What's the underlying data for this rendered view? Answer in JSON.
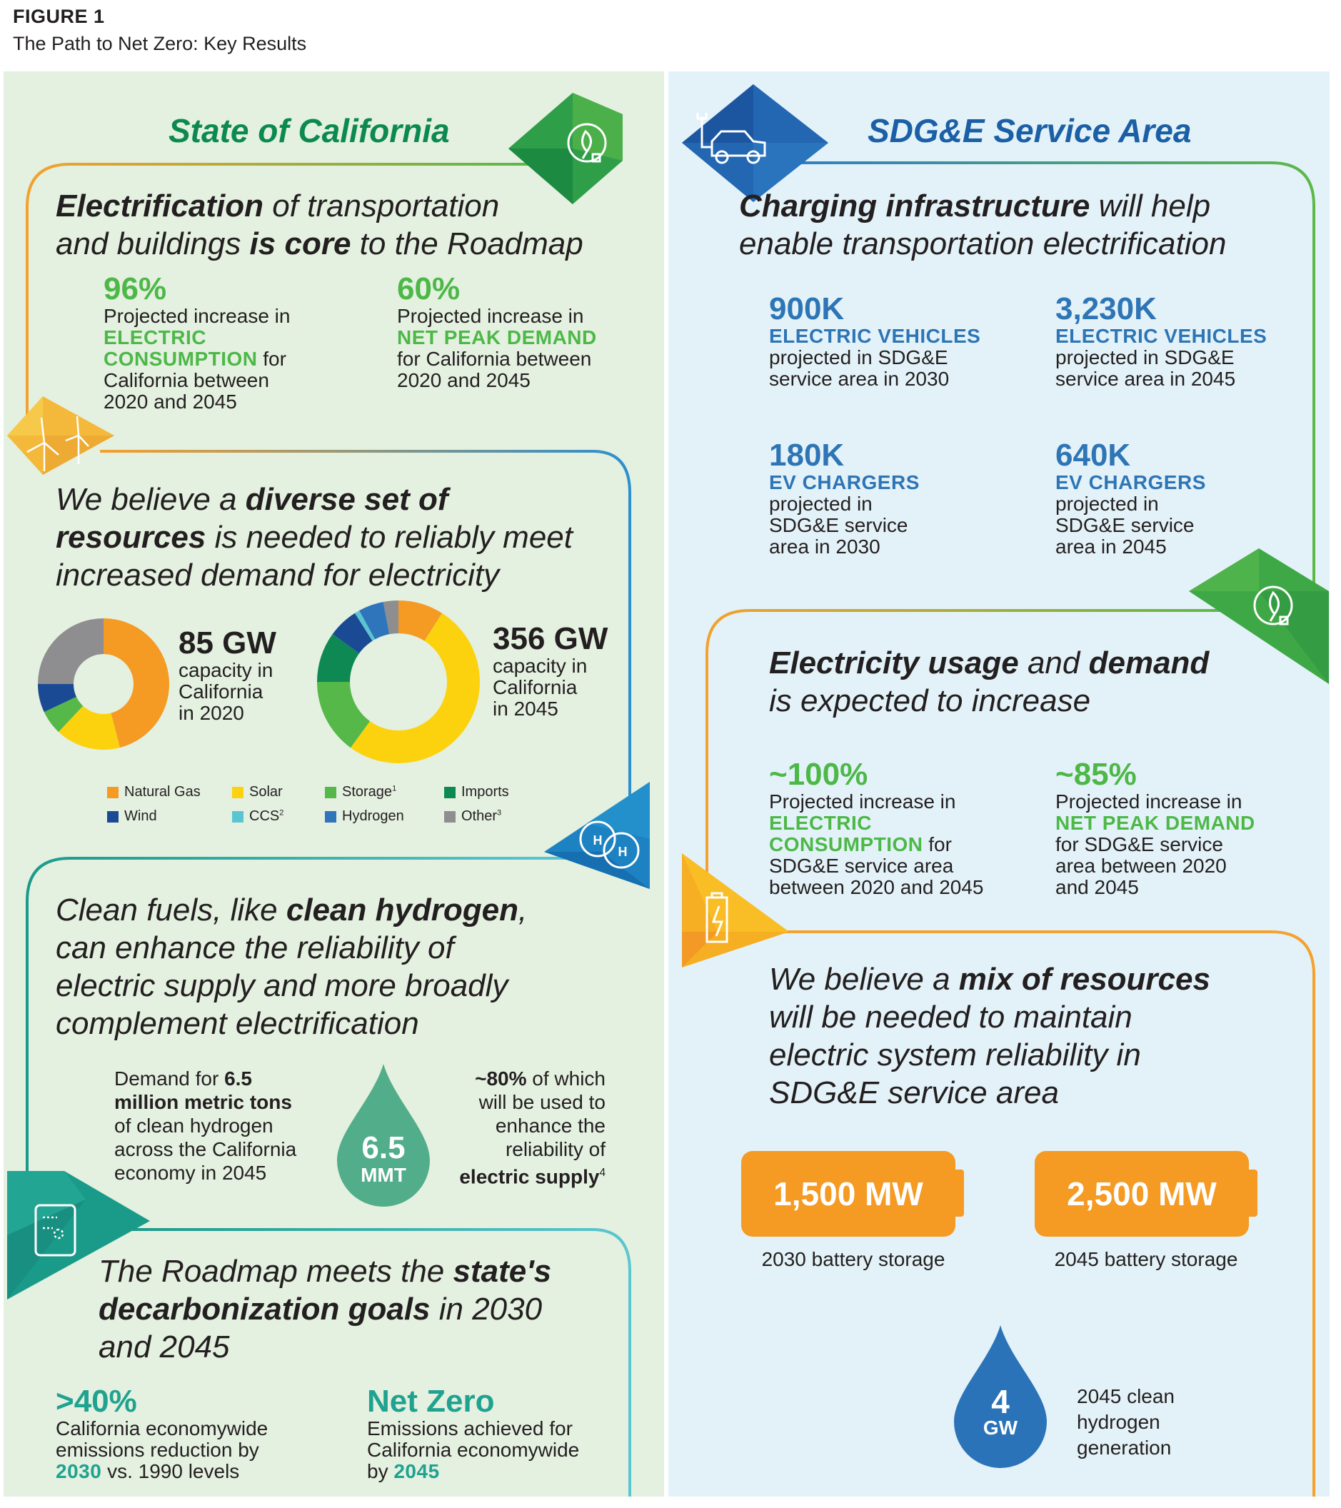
{
  "figure": {
    "label": "FIGURE 1",
    "subtitle": "The Path to Net Zero: Key Results"
  },
  "colors": {
    "left_bg": "#e4f0e0",
    "right_bg": "#e3f2f8",
    "green_title": "#0c8a4e",
    "blue_title": "#1b5fa6",
    "stat_green": "#4db848",
    "stat_blue": "#2e75b6",
    "stat_teal": "#1fa28f",
    "orange": "#f59a23",
    "hydrogen_drop_green": "#52ad8a",
    "hydrogen_drop_blue": "#2b73b8"
  },
  "left": {
    "title": "State of California",
    "section1": {
      "headline": {
        "b1": "Electrification",
        "t1": " of transportation",
        "t2": "and buildings ",
        "b2": "is core",
        "t3": " to the Roadmap"
      },
      "stats": [
        {
          "value": "96%",
          "pre": "Projected increase in",
          "kw1": "ELECTRIC",
          "kw2": "CONSUMPTION",
          "post1": " for",
          "post2": "California between",
          "post3": "2020 and 2045"
        },
        {
          "value": "60%",
          "pre": "Projected increase in",
          "kw1": "NET PEAK DEMAND",
          "post1": "for California between",
          "post2": "2020 and 2045"
        }
      ]
    },
    "section2": {
      "headline": {
        "t1": "We believe a ",
        "b1": "diverse set of",
        "b2": "resources",
        "t2": " is needed to reliably meet",
        "t3": "increased demand for electricity"
      },
      "donut2020": {
        "value": "85 GW",
        "l1": "capacity in",
        "l2": "California",
        "l3": "in 2020"
      },
      "donut2045": {
        "value": "356 GW",
        "l1": "capacity in",
        "l2": "California",
        "l3": "in 2045"
      },
      "legend": [
        {
          "label": "Natural Gas",
          "sup": "",
          "color": "#f59a23"
        },
        {
          "label": "Solar",
          "sup": "",
          "color": "#fcd20f"
        },
        {
          "label": "Storage",
          "sup": "1",
          "color": "#55b848"
        },
        {
          "label": "Imports",
          "sup": "",
          "color": "#0e8953"
        },
        {
          "label": "Wind",
          "sup": "",
          "color": "#1a4a94"
        },
        {
          "label": "CCS",
          "sup": "2",
          "color": "#5bc4d1"
        },
        {
          "label": "Hydrogen",
          "sup": "",
          "color": "#2e75bb"
        },
        {
          "label": "Other",
          "sup": "3",
          "color": "#8e8d90"
        }
      ]
    },
    "section3": {
      "headline": {
        "t1": "Clean fuels, like ",
        "b1": "clean hydrogen",
        "t1b": ",",
        "t2": "can enhance the reliability of",
        "t3": "electric supply and more broadly",
        "t4": "complement electrification"
      },
      "left_text": {
        "t1": "Demand for ",
        "b1": "6.5",
        "b2": "million metric tons",
        "t2": "of clean hydrogen",
        "t3": "across the California",
        "t4": "economy in 2045"
      },
      "drop": {
        "value": "6.5",
        "unit": "MMT"
      },
      "right_text": {
        "b1": "~80%",
        "t1": " of which",
        "t2": "will be used to",
        "t3": "enhance the",
        "t4": "reliability of",
        "b2": "electric supply",
        "sup": "4"
      }
    },
    "section4": {
      "headline": {
        "t1": "The Roadmap meets the ",
        "b1": "state's",
        "b2": "decarbonization goals",
        "t2": " in 2030",
        "t3": "and 2045"
      },
      "stats": [
        {
          "value": ">40%",
          "l1": "California economywide",
          "l2": "emissions reduction by",
          "kw": "2030",
          "l3": " vs. 1990 levels"
        },
        {
          "value": "Net Zero",
          "l1": "Emissions achieved for",
          "l2": "California economywide",
          "l3": "by ",
          "kw": "2045"
        }
      ]
    }
  },
  "right": {
    "title": "SDG&E Service Area",
    "section1": {
      "headline": {
        "b1": "Charging infrastructure",
        "t1": " will help",
        "t2": "enable transportation electrification"
      },
      "stats": [
        {
          "value": "900K",
          "kw": "ELECTRIC VEHICLES",
          "l1": "projected in SDG&E",
          "l2": "service area in 2030"
        },
        {
          "value": "3,230K",
          "kw": "ELECTRIC VEHICLES",
          "l1": "projected in SDG&E",
          "l2": "service area in 2045"
        },
        {
          "value": "180K",
          "kw": "EV CHARGERS",
          "l1": "projected in",
          "l2": "SDG&E service",
          "l3": "area in 2030"
        },
        {
          "value": "640K",
          "kw": "EV CHARGERS",
          "l1": "projected in",
          "l2": "SDG&E service",
          "l3": "area in 2045"
        }
      ]
    },
    "section2": {
      "headline": {
        "b1": "Electricity usage",
        "t1": " and ",
        "b2": "demand",
        "t2": "is expected to increase"
      },
      "stats": [
        {
          "value": "~100%",
          "pre": "Projected increase in",
          "kw1": "ELECTRIC",
          "kw2": "CONSUMPTION",
          "post1": " for",
          "post2": "SDG&E service area",
          "post3": "between 2020 and 2045"
        },
        {
          "value": "~85%",
          "pre": "Projected increase in",
          "kw1": "NET PEAK DEMAND",
          "post1": "for SDG&E service",
          "post2": "area between 2020",
          "post3": "and 2045"
        }
      ]
    },
    "section3": {
      "headline": {
        "t1": "We believe a ",
        "b1": "mix of resources",
        "t2": "will be needed to maintain",
        "t3": "electric system reliability in",
        "t4": "SDG&E service area"
      },
      "batteries": [
        {
          "value": "1,500 MW",
          "caption": "2030 battery storage"
        },
        {
          "value": "2,500 MW",
          "caption": "2045 battery storage"
        }
      ],
      "drop": {
        "value": "4",
        "unit": "GW"
      },
      "drop_caption": {
        "l1": "2045 clean",
        "l2": "hydrogen",
        "l3": "generation"
      }
    }
  },
  "chart_data": [
    {
      "type": "pie",
      "title": "85 GW capacity in California in 2020",
      "categories": [
        "Natural Gas",
        "Solar",
        "Storage",
        "Wind",
        "Other"
      ],
      "values": [
        46,
        16,
        6,
        7,
        25
      ],
      "units": "% of capacity (estimated from slice angles)",
      "donut": true
    },
    {
      "type": "pie",
      "title": "356 GW capacity in California in 2045",
      "categories": [
        "Natural Gas",
        "Solar",
        "Storage",
        "Imports",
        "Wind",
        "CCS",
        "Hydrogen",
        "Other"
      ],
      "values": [
        9,
        51,
        15,
        10,
        6,
        1,
        5,
        3
      ],
      "units": "% of capacity (estimated from slice angles)",
      "donut": true
    }
  ]
}
